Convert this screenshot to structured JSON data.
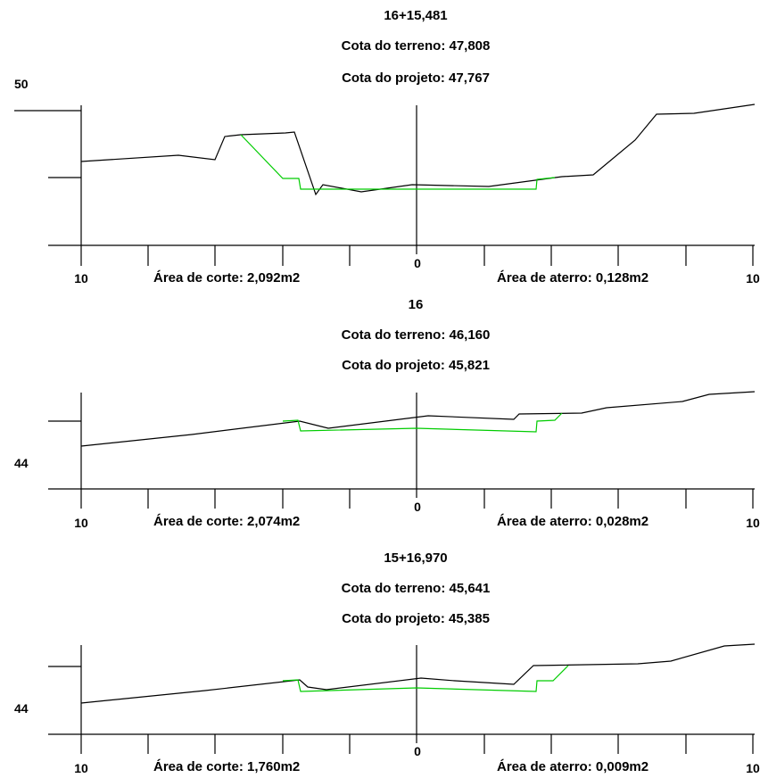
{
  "sections": [
    {
      "station": "16+15,481",
      "terrain_elevation": "Cota do terreno: 47,808",
      "project_elevation": "Cota do projeto: 47,767",
      "cut_area": "Área de corte: 2,092m2",
      "fill_area": "Área de aterro: 0,128m2",
      "elevation_label": "50",
      "left_offset_label": "10",
      "center_label": "0",
      "right_offset_label": "10"
    },
    {
      "station": "16",
      "terrain_elevation": "Cota do terreno: 46,160",
      "project_elevation": "Cota do projeto: 45,821",
      "cut_area": "Área de corte: 2,074m2",
      "fill_area": "Área de aterro: 0,028m2",
      "elevation_label": "44",
      "left_offset_label": "10",
      "center_label": "0",
      "right_offset_label": "10"
    },
    {
      "station": "15+16,970",
      "terrain_elevation": "Cota do terreno: 45,641",
      "project_elevation": "Cota do projeto: 45,385",
      "cut_area": "Área de corte: 1,760m2",
      "fill_area": "Área de aterro: 0,009m2",
      "elevation_label": "44",
      "left_offset_label": "10",
      "center_label": "0",
      "right_offset_label": "10"
    }
  ],
  "colors": {
    "terrain": "#000000",
    "project": "#00cc00",
    "axis": "#000000"
  }
}
